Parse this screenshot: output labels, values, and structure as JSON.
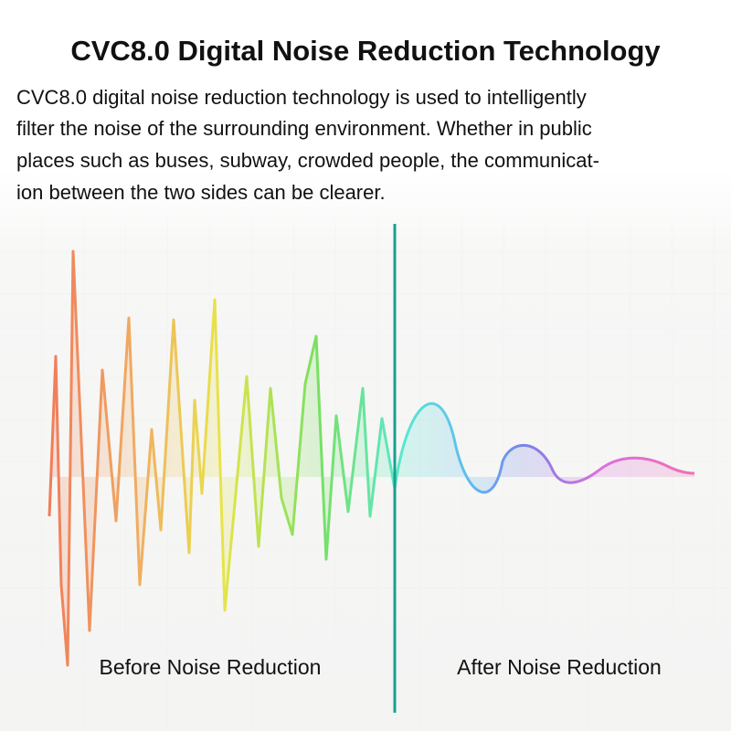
{
  "title": "CVC8.0 Digital Noise Reduction Technology",
  "description": [
    "CVC8.0 digital noise reduction technology is used to intelligently",
    "filter the noise of the surrounding environment. Whether in public",
    "places such as buses, subway, crowded people, the communicat-",
    "ion between the two sides can be clearer."
  ],
  "labels": {
    "before": "Before Noise Reduction",
    "after": "After Noise Reduction"
  }
}
